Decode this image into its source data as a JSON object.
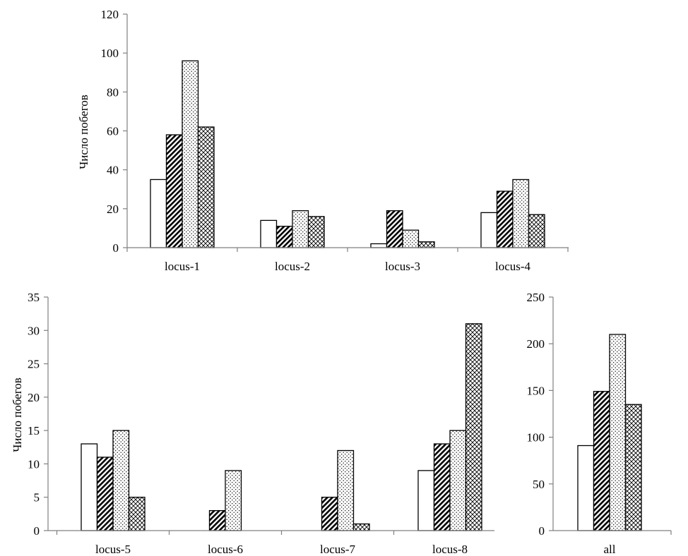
{
  "chart_data": [
    {
      "type": "bar",
      "id": "top",
      "title": "",
      "xlabel": "",
      "ylabel": "Число побегов",
      "ylim": [
        0,
        120
      ],
      "yticks": [
        0,
        20,
        40,
        60,
        80,
        100,
        120
      ],
      "categories": [
        "locus-1",
        "locus-2",
        "locus-3",
        "locus-4"
      ],
      "series": [
        {
          "pattern": "white",
          "values": [
            35,
            14,
            2,
            18
          ]
        },
        {
          "pattern": "dark-diagonal",
          "values": [
            58,
            11,
            19,
            29
          ]
        },
        {
          "pattern": "dots",
          "values": [
            96,
            19,
            9,
            35
          ]
        },
        {
          "pattern": "crosshatch",
          "values": [
            62,
            16,
            3,
            17
          ]
        }
      ],
      "grid": false,
      "legend": "none"
    },
    {
      "type": "bar",
      "id": "bottom-left",
      "title": "",
      "xlabel": "",
      "ylabel": "Число побегов",
      "ylim": [
        0,
        35
      ],
      "yticks": [
        0,
        5,
        10,
        15,
        20,
        25,
        30,
        35
      ],
      "categories": [
        "locus-5",
        "locus-6",
        "locus-7",
        "locus-8"
      ],
      "series": [
        {
          "pattern": "white",
          "values": [
            13,
            0,
            0,
            9
          ]
        },
        {
          "pattern": "dark-diagonal",
          "values": [
            11,
            3,
            5,
            13
          ]
        },
        {
          "pattern": "dots",
          "values": [
            15,
            9,
            12,
            15
          ]
        },
        {
          "pattern": "crosshatch",
          "values": [
            5,
            0,
            1,
            31
          ]
        }
      ],
      "grid": false,
      "legend": "none"
    },
    {
      "type": "bar",
      "id": "bottom-right",
      "title": "",
      "xlabel": "",
      "ylabel": "",
      "ylim": [
        0,
        250
      ],
      "yticks": [
        0,
        50,
        100,
        150,
        200,
        250
      ],
      "categories": [
        "all"
      ],
      "series": [
        {
          "pattern": "white",
          "values": [
            91
          ]
        },
        {
          "pattern": "dark-diagonal",
          "values": [
            149
          ]
        },
        {
          "pattern": "dots",
          "values": [
            210
          ]
        },
        {
          "pattern": "crosshatch",
          "values": [
            135
          ]
        }
      ],
      "grid": false,
      "legend": "none"
    }
  ]
}
